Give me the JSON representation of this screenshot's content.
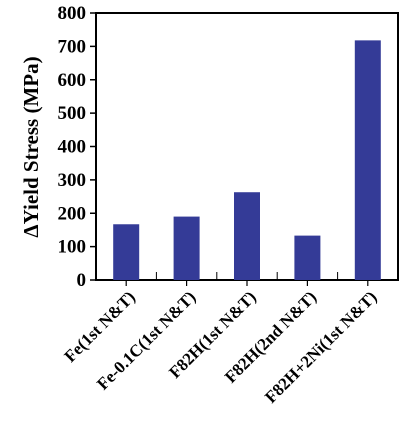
{
  "chart_data": {
    "type": "bar",
    "title": "",
    "xlabel": "",
    "ylabel": "ΔYield Stress (MPa)",
    "categories": [
      "Fe(1st N&T)",
      "Fe-0.1C(1st N&T)",
      "F82H(1st N&T)",
      "F82H(2nd N&T)",
      "F82H+2Ni(1st N&T)"
    ],
    "values": [
      167,
      190,
      263,
      133,
      718
    ],
    "ylim": [
      0,
      800
    ],
    "yticks": [
      0,
      100,
      200,
      300,
      400,
      500,
      600,
      700,
      800
    ],
    "grid": false,
    "legend": "none",
    "bar_color": "#343b97",
    "axis_color": "#000000"
  }
}
